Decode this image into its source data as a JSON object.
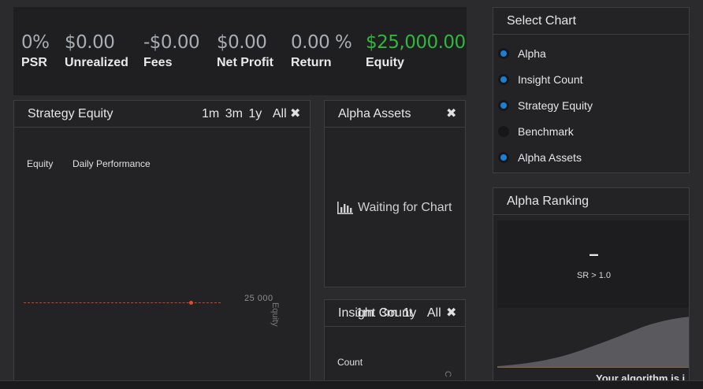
{
  "stats": [
    {
      "value": "0%",
      "label": "PSR",
      "color": "#a7adb4"
    },
    {
      "value": "$0.00",
      "label": "Unrealized",
      "color": "#a7adb4"
    },
    {
      "value": "-$0.00",
      "label": "Fees",
      "color": "#a7adb4"
    },
    {
      "value": "$0.00",
      "label": "Net Profit",
      "color": "#a7adb4"
    },
    {
      "value": "0.00 %",
      "label": "Return",
      "color": "#a7adb4"
    },
    {
      "value": "$25,000.00",
      "label": "Equity",
      "color": "#2fb83b"
    }
  ],
  "strategy_equity": {
    "title": "Strategy Equity",
    "ranges": [
      "1m",
      "3m",
      "1y",
      "All"
    ],
    "legend": [
      "Equity",
      "Daily Performance"
    ],
    "tick": "25 000",
    "axis_label": "Equity"
  },
  "alpha_assets": {
    "title": "Alpha Assets",
    "waiting_text": "Waiting for Chart",
    "icon": "bar-chart-icon"
  },
  "insight_count": {
    "title": "Insight Count",
    "ranges": [
      "1m",
      "3m",
      "1y",
      "All"
    ],
    "legend": [
      "Count"
    ],
    "axis_label": "C"
  },
  "select_chart": {
    "title": "Select Chart",
    "options": [
      {
        "label": "Alpha",
        "checked": true
      },
      {
        "label": "Insight Count",
        "checked": true
      },
      {
        "label": "Strategy Equity",
        "checked": true
      },
      {
        "label": "Benchmark",
        "checked": false
      },
      {
        "label": "Alpha Assets",
        "checked": true
      }
    ]
  },
  "alpha_ranking": {
    "title": "Alpha Ranking",
    "value": "–",
    "subtitle": "SR > 1.0",
    "caption": "Your algorithm is i"
  },
  "close_icon": "close-icon",
  "accent_color": "#1b7fd6"
}
